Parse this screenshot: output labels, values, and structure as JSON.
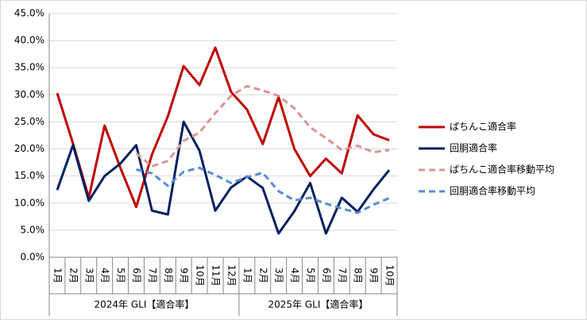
{
  "chart_data": {
    "type": "line",
    "groups": [
      {
        "label": "2024年 GLI【適合率】",
        "categories": [
          "1月",
          "2月",
          "3月",
          "4月",
          "5月",
          "6月",
          "7月",
          "8月",
          "9月",
          "10月",
          "11月",
          "12月"
        ]
      },
      {
        "label": "2025年 GLI【適合率】",
        "categories": [
          "1月",
          "2月",
          "3月",
          "4月",
          "5月",
          "6月",
          "7月",
          "8月",
          "9月",
          "10月"
        ]
      }
    ],
    "series": [
      {
        "name": "ぱちんこ適合率",
        "color": "#c00000",
        "dashed": false,
        "values": [
          30.3,
          21,
          11,
          24.3,
          16.5,
          9.3,
          19,
          26,
          35.3,
          31.8,
          38.7,
          30.5,
          27.3,
          20.9,
          29.6,
          20,
          15,
          18.2,
          15.5,
          26.2,
          22.7,
          21.6
        ]
      },
      {
        "name": "回胴適合率",
        "color": "#002060",
        "dashed": false,
        "values": [
          12.4,
          20.7,
          10.4,
          15,
          17.3,
          20.7,
          8.6,
          7.9,
          25,
          19.7,
          8.6,
          12.9,
          14.9,
          12.8,
          4.4,
          8.5,
          13.7,
          4.4,
          11,
          8.4,
          12.5,
          16.1
        ]
      },
      {
        "name": "ぱちんこ適合率移動平均",
        "color": "#d99694",
        "dashed": true,
        "values": [
          null,
          null,
          null,
          null,
          null,
          19.2,
          16.8,
          17.8,
          21.5,
          23,
          26.6,
          29.8,
          31.6,
          30.8,
          29.8,
          27.5,
          24,
          22,
          19.8,
          20.6,
          19.4,
          19.8
        ]
      },
      {
        "name": "回胴適合率移動平均",
        "color": "#558ed5",
        "dashed": true,
        "values": [
          null,
          null,
          null,
          null,
          null,
          16.2,
          15.5,
          13.2,
          15.8,
          16.5,
          15.2,
          13.7,
          14.8,
          15.6,
          12.2,
          10.5,
          11,
          9.9,
          9,
          8.2,
          9.7,
          10.9
        ]
      }
    ],
    "ylim": [
      0,
      45
    ],
    "yticks": [
      {
        "value": 0,
        "label": "0.0%"
      },
      {
        "value": 5,
        "label": "5.0%"
      },
      {
        "value": 10,
        "label": "10.0%"
      },
      {
        "value": 15,
        "label": "15.0%"
      },
      {
        "value": 20,
        "label": "20.0%"
      },
      {
        "value": 25,
        "label": "25.0%"
      },
      {
        "value": 30,
        "label": "30.0%"
      },
      {
        "value": 35,
        "label": "35.0%"
      },
      {
        "value": 40,
        "label": "40.0%"
      },
      {
        "value": 45,
        "label": "45.0%"
      }
    ],
    "grid": true,
    "legend": "right"
  }
}
